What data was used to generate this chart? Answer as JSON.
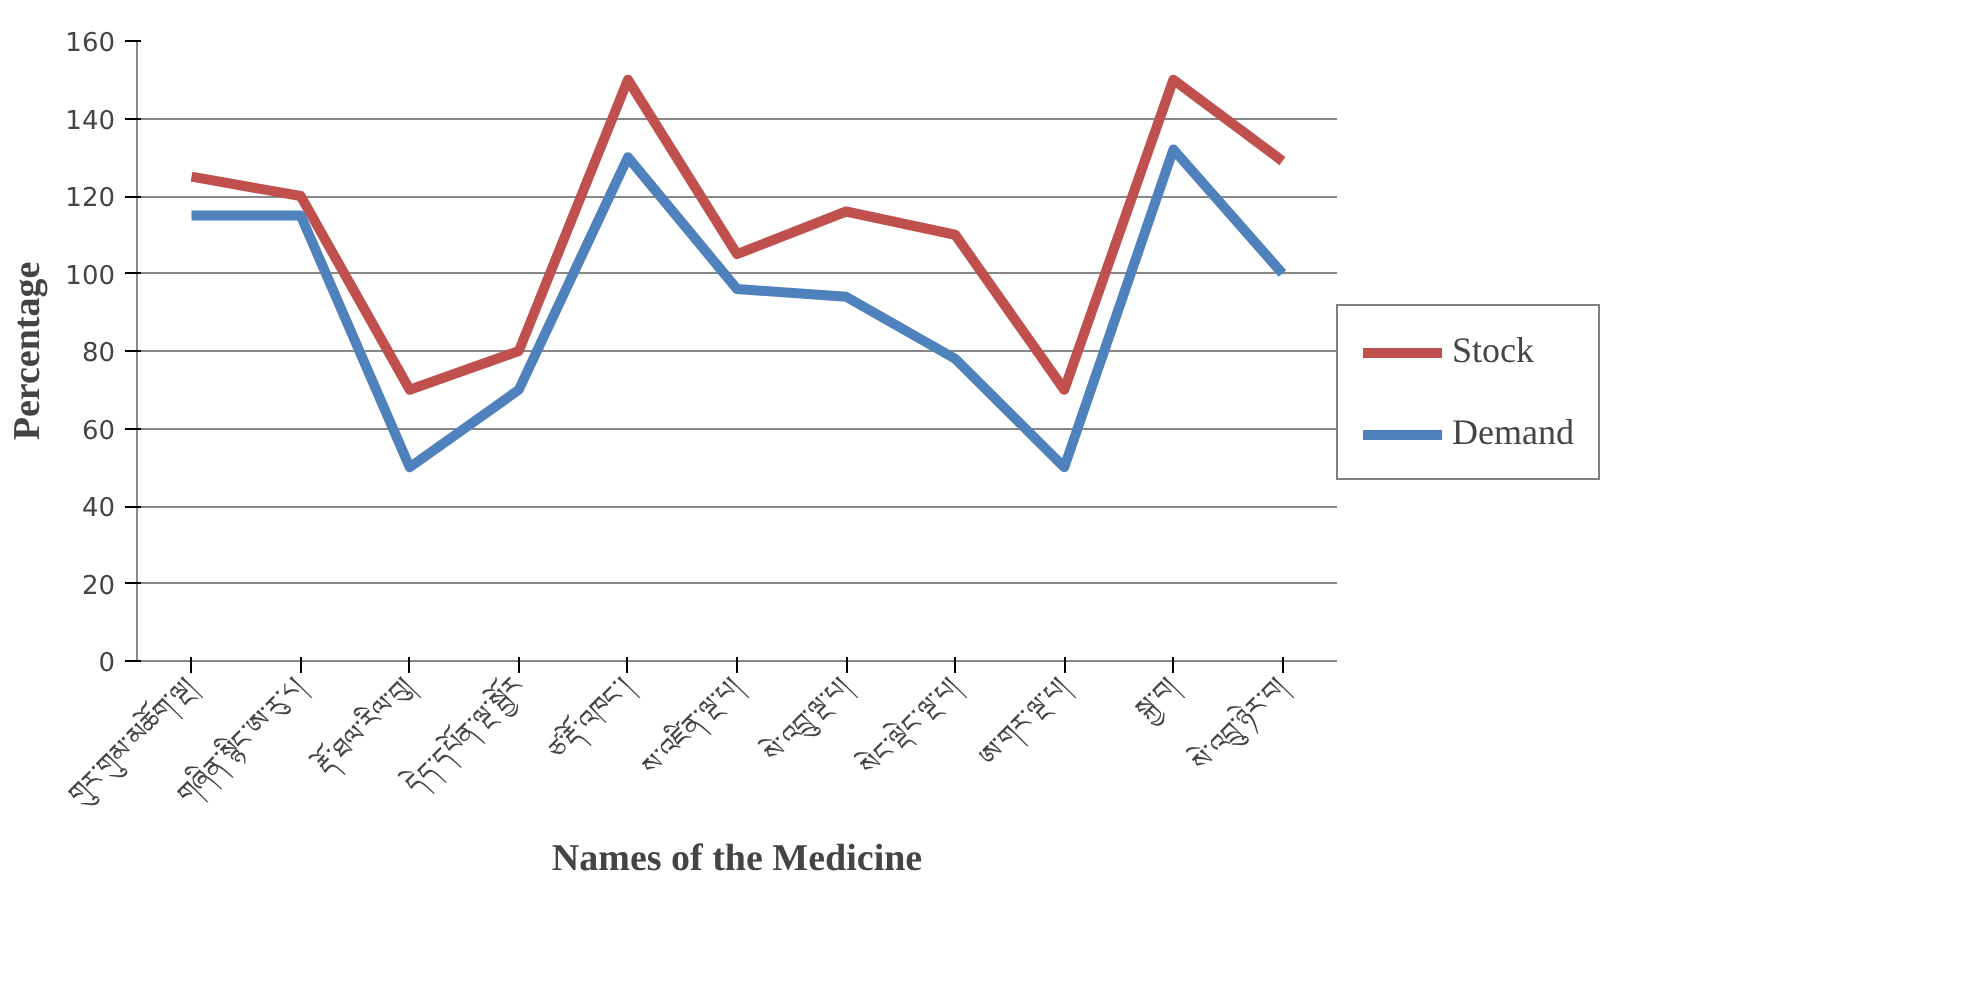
{
  "chart_data": {
    "type": "line",
    "xlabel": "Names of the Medicine",
    "ylabel": "Percentage",
    "categories": [
      "གུར་གུམ་མཆོག་ལྔ།",
      "གཞིན་སྙིང་ཨ་རུ་༨།",
      "རྡོ་ཐལ་རིལ་བུ།",
      "དེད་དཔོན་ལྔ་སྦྱོར",
      "ཙ་རྡོ་འཁང་།",
      "ས་འཛིན་ལྔ་པ།",
      "སེ་འབྲུ་ལྔ་པ།",
      "སེང་ལྡེང་ལྔ་པ།",
      "ཨ་གར་ལྔ་པ།",
      "སྐྱ་བ།",
      "སེ་འབྲུ་ཉེར་བ།"
    ],
    "series": [
      {
        "name": "Stock",
        "color": "#c0504d",
        "values": [
          125,
          120,
          70,
          80,
          150,
          105,
          116,
          110,
          70,
          150,
          129
        ]
      },
      {
        "name": "Demand",
        "color": "#4f81bd",
        "values": [
          115,
          115,
          50,
          70,
          130,
          96,
          94,
          78,
          50,
          132,
          100
        ]
      }
    ],
    "ylim": [
      0,
      160
    ],
    "yticks": [
      0,
      20,
      40,
      60,
      80,
      100,
      120,
      140,
      160
    ],
    "grid": "y",
    "legend": "right"
  }
}
